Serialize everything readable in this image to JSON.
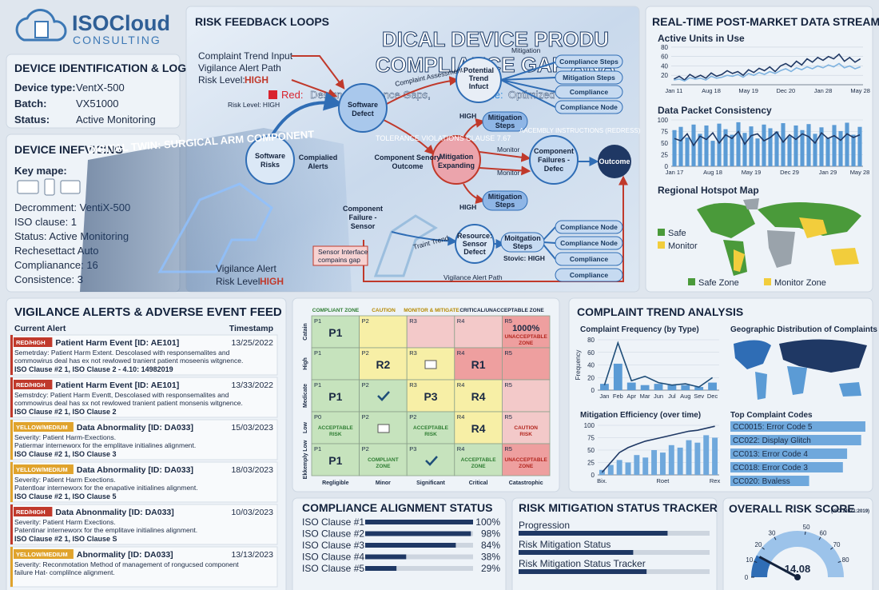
{
  "logo": {
    "name": "ISOCloud",
    "tagline": "CONSULTING"
  },
  "device_log": {
    "title": "DEVICE IDENTIFICATION & LOG",
    "fields": [
      {
        "label": "Device type:",
        "value": "VentX-500"
      },
      {
        "label": "Batch:",
        "value": "VX51000"
      },
      {
        "label": "Status:",
        "value": "Active Monitoring"
      }
    ]
  },
  "device_info": {
    "title": "DEVICE INEFVICING",
    "key_map": "Key mape:",
    "lines": [
      "Decromment: VentiX-500",
      "ISO clause: 1",
      "Status: Active Monitoring",
      "Rechesettact Auto",
      "Complianance: 16",
      "Consistence: 3"
    ]
  },
  "feedback": {
    "title": "RISK FEEDBACK LOOPS",
    "overlay_title": [
      "DICAL DEVICE PRODU",
      "COMPLIANCE GAP ANA"
    ],
    "legend": {
      "red": "Red:",
      "red_text": "Design Compliance Gaps,",
      "blue": "Blue:",
      "blue_text": "Optimized Path"
    },
    "inputs": [
      "Complaint Trend Input",
      "Vigilance Alert Path",
      "Risk Level:"
    ],
    "inputs_level": "HIGH",
    "nodes": [
      [
        "Software",
        "Risks"
      ],
      [
        "Compialied",
        "Alerts"
      ],
      [
        "Software",
        "Defect"
      ],
      [
        "Potential",
        "Trend",
        "Infuct"
      ],
      [
        "Mitigation",
        "Expanding"
      ],
      [
        "Component Senory",
        "Outcome"
      ],
      [
        "Component",
        "Failure -",
        "Sensor"
      ],
      [
        "Component",
        "Failures -",
        "Defec"
      ],
      [
        "Outcome"
      ],
      [
        "Mitigation",
        "Steps"
      ],
      [
        "Mitigation",
        "Steps"
      ],
      [
        "Resource:",
        "Sensor",
        "Defect"
      ],
      [
        "Moitgation",
        "Steps"
      ]
    ],
    "pills": [
      "Compliance Steps",
      "Mitigation Steps",
      "Compliance",
      "Compliance Node",
      "Compliance Node",
      "Compliance Node",
      "Compliance",
      "Compliance"
    ],
    "labels": [
      "Risk Level: HIGH",
      "Mitigation",
      "Complaint Assessment",
      "HIGH",
      "Monitor",
      "Monitor",
      "HIGH",
      "Vigilance Alert Path",
      "Stovic: HIGH",
      "Sensor Interface",
      "compains gap",
      "TOLERANCE VIOLATIONS CLAUSE 7.67",
      "AACEMBLY INSTRUCTIONS (REDRESS)",
      "DIGITAL TWIN: SURGICAL ARM COMPONENT",
      "Vigilance Alert",
      "Risk Level:",
      "HIGH",
      "Traint Trend"
    ]
  },
  "stream": {
    "title": "REAL-TIME POST-MARKET DATA STREAM",
    "map_title": "Regional Hotspot Map",
    "map_legend": [
      "Safe",
      "Monitor"
    ],
    "map_footer": [
      "Safe Zone",
      "Monitor Zone"
    ]
  },
  "alerts": {
    "title": "VIGILANCE ALERTS & ADVERSE EVENT FEED",
    "col_alert": "Current Alert",
    "col_time": "Timestamp",
    "items": [
      {
        "badge": "RED/HIGH",
        "color": "#c0392b",
        "title": "Patient Harm Event [ID: AE101]",
        "time": "13/25/2022",
        "lines": [
          "Semetrday: Patient Harm Extent. Descolased with responsemalites and",
          "commowirus deal has ex not rewlowed tranient patient moseenis witgnence."
        ],
        "clause": "ISO Clause #2 1, ISO Clause 2 - 4.10: 14982019"
      },
      {
        "badge": "RED/HIGH",
        "color": "#c0392b",
        "title": "Patient Harm Event [ID: AE101]",
        "time": "13/33/2022",
        "lines": [
          "Semstrdcy: Patient Harm Eventt, Descolased with responsemalites and",
          "commowirus deal has sx not rewlowed tranient patient monsenis witgnence."
        ],
        "clause": "ISO Clause #2 1, ISO Clause 2"
      },
      {
        "badge": "YELLOW/MEDIUM",
        "color": "#e0a32c",
        "title": "Data Abnormality [ID: DA033]",
        "time": "15/03/2023",
        "lines": [
          "Severity: Patient Harm-Exections.",
          "Patiermar interneworx for the emplitave initialines alignment."
        ],
        "clause": "ISO Clause #2 1, ISO Clause 3"
      },
      {
        "badge": "YELLOW/MEDIUM",
        "color": "#e0a32c",
        "title": "Data Abnormality [ID: DA033]",
        "time": "18/03/2023",
        "lines": [
          "Severity: Patient Harm Exections.",
          "Patentloar interneworx for the enapative initialines alignment."
        ],
        "clause": "ISO Clause #2 1, ISO Clause 5"
      },
      {
        "badge": "RED/HIGH",
        "color": "#c0392b",
        "title": "Data Abnonmality [ID: DA033]",
        "time": "10/03/2023",
        "lines": [
          "Severity: Patient Harm Exections.",
          "Patentinar interneworx for the emplitave initialines alignment."
        ],
        "clause": "ISO Clause #2 1, ISO Clause S"
      },
      {
        "badge": "YELLOW/MEDIUM",
        "color": "#e0a32c",
        "title": "Abnormality [ID: DA033]",
        "time": "13/13/2023",
        "lines": [
          "Severity: Reconmotation Method of management of rongucsed component",
          "failure Hat- complilnce alignment."
        ]
      }
    ]
  },
  "matrix": {
    "zones": [
      "COMPLIANT ZONE",
      "CAUTION",
      "MONITOR & MITIGATE",
      "CRITICAL/UNACCEPTABLE ZONE"
    ],
    "columns": [
      "Regligible",
      "Minor",
      "Significant",
      "Critical",
      "Catastrophic"
    ],
    "rows": [
      "Catain",
      "High",
      "Medicate",
      "Low",
      "Ekkemply Low"
    ],
    "cells": [
      [
        {
          "id": "P1",
          "main": "P1",
          "color": "#c6e3bd"
        },
        {
          "id": "P2",
          "color": "#f7efa6"
        },
        {
          "id": "R3",
          "color": "#f3c9c9"
        },
        {
          "id": "R4",
          "color": "#f3c9c9"
        },
        {
          "id": "R5",
          "main": "1000%",
          "note": [
            "UNACCEPTABLE",
            "ZONE"
          ],
          "note_color": "#b3261e",
          "color": "#ee9f9f"
        }
      ],
      [
        {
          "id": "P1",
          "color": "#c6e3bd"
        },
        {
          "id": "P2",
          "main": "R2",
          "color": "#f7efa6"
        },
        {
          "id": "R3",
          "color": "#f7efa6"
        },
        {
          "id": "R4",
          "main": "R1",
          "color": "#ee9f9f"
        },
        {
          "id": "R5",
          "color": "#ee9f9f"
        }
      ],
      [
        {
          "id": "P1",
          "main": "P1",
          "color": "#c6e3bd"
        },
        {
          "id": "P2",
          "color": "#c6e3bd"
        },
        {
          "id": "R3",
          "main": "P3",
          "color": "#f7efa6"
        },
        {
          "id": "R4",
          "main": "R4",
          "color": "#f7efa6"
        },
        {
          "id": "R5",
          "color": "#f3c9c9"
        }
      ],
      [
        {
          "id": "P0",
          "note": [
            "ACCEPTABLE",
            "RISK"
          ],
          "note_color": "#2e7d32",
          "color": "#c6e3bd"
        },
        {
          "id": "P2",
          "color": "#c6e3bd"
        },
        {
          "id": "P2",
          "note": [
            "ACCEPTABLE",
            "RISK"
          ],
          "note_color": "#2e7d32",
          "color": "#c6e3bd"
        },
        {
          "id": "R4",
          "main": "R4",
          "color": "#f7efa6"
        },
        {
          "id": "R5",
          "note": [
            "CAUTION",
            "RISK"
          ],
          "note_color": "#b3261e",
          "color": "#f3c9c9"
        }
      ],
      [
        {
          "id": "P1",
          "main": "P1",
          "color": "#c6e3bd"
        },
        {
          "id": "P2",
          "note": [
            "COMPLIANT",
            "ZONE"
          ],
          "note_color": "#2e7d32",
          "color": "#c6e3bd"
        },
        {
          "id": "P3",
          "color": "#c6e3bd"
        },
        {
          "id": "R4",
          "note": [
            "ACCEPTABLE",
            "ZONE"
          ],
          "note_color": "#2e7d32",
          "color": "#c6e3bd"
        },
        {
          "id": "R5",
          "note": [
            "UNACCEPTABLE",
            "ZONE"
          ],
          "note_color": "#b3261e",
          "color": "#ee9f9f"
        }
      ]
    ]
  },
  "complaints": {
    "title": "COMPLAINT TREND ANALYSIS",
    "geo_title": "Geographic Distribution of Complaints"
  },
  "overall": {
    "title": "OVERALL RISK SCORE",
    "subtitle": "(ISO 14971:2019)"
  },
  "chart_data": [
    {
      "type": "line",
      "title": "Active Units in Use",
      "categories": [
        "Jan 11",
        null,
        null,
        null,
        null,
        null,
        null,
        "Aug 18",
        null,
        null,
        null,
        null,
        null,
        null,
        "May 19",
        null,
        null,
        null,
        null,
        null,
        null,
        "Dec 20",
        null,
        null,
        null,
        null,
        null,
        null,
        "Jan 28",
        null,
        null,
        null,
        null,
        null,
        null,
        "May 28"
      ],
      "ylim": [
        0,
        85
      ],
      "yticks": [
        20,
        40,
        60,
        80
      ],
      "grid": true,
      "series": [
        {
          "name": "Active",
          "type": "line",
          "color": "#1f3864",
          "values": [
            12,
            18,
            10,
            22,
            15,
            20,
            14,
            25,
            18,
            22,
            30,
            24,
            28,
            20,
            32,
            26,
            35,
            30,
            38,
            28,
            40,
            45,
            38,
            50,
            42,
            55,
            48,
            58,
            52,
            60,
            55,
            65,
            50,
            58,
            48,
            55
          ]
        },
        {
          "name": "Baseline",
          "type": "line",
          "color": "#7fb3e0",
          "values": [
            10,
            12,
            8,
            15,
            12,
            14,
            10,
            18,
            14,
            16,
            20,
            18,
            22,
            16,
            24,
            20,
            26,
            22,
            28,
            24,
            30,
            34,
            28,
            36,
            32,
            38,
            34,
            40,
            36,
            42,
            38,
            45,
            36,
            40,
            34,
            38
          ]
        }
      ]
    },
    {
      "type": "combo",
      "title": "Data Packet Consistency",
      "categories": [
        "Jan 17",
        null,
        null,
        null,
        null,
        null,
        "Aug 18",
        null,
        null,
        null,
        null,
        null,
        "May 19",
        null,
        null,
        null,
        null,
        null,
        "Dec 29",
        null,
        null,
        null,
        null,
        null,
        "Jan 29",
        null,
        null,
        null,
        null,
        "May 28"
      ],
      "ylim": [
        0,
        100
      ],
      "yticks": [
        0,
        25,
        50,
        75,
        100
      ],
      "grid": true,
      "series": [
        {
          "name": "Packets",
          "type": "bar",
          "color": "#5b9bd5",
          "values": [
            78,
            85,
            62,
            90,
            70,
            88,
            55,
            92,
            80,
            68,
            95,
            72,
            86,
            60,
            90,
            82,
            75,
            93,
            65,
            88,
            78,
            91,
            70,
            84,
            62,
            89,
            76,
            94,
            68,
            85
          ]
        },
        {
          "name": "Consistency",
          "type": "line",
          "color": "#1f3864",
          "values": [
            60,
            55,
            70,
            45,
            65,
            58,
            72,
            50,
            68,
            60,
            75,
            48,
            66,
            70,
            55,
            62,
            74,
            52,
            68,
            58,
            70,
            64,
            50,
            72,
            60,
            66,
            56,
            70,
            62,
            68
          ]
        }
      ]
    },
    {
      "type": "combo",
      "title": "Complaint Frequency (by Type)",
      "y_label": "Frequency",
      "categories": [
        "Jan",
        "Feb",
        "Apr",
        "Mar",
        "Jun",
        "Jul",
        "Aug",
        "Sev",
        "Dec"
      ],
      "ylim": [
        0,
        80
      ],
      "yticks": [
        0,
        20,
        40,
        60,
        80
      ],
      "grid": true,
      "series": [
        {
          "name": "Count",
          "type": "bar",
          "color": "#5b9bd5",
          "values": [
            10,
            42,
            12,
            8,
            10,
            8,
            8,
            5,
            12
          ]
        },
        {
          "name": "Trend",
          "type": "line",
          "color": "#1f4e79",
          "values": [
            8,
            75,
            15,
            22,
            12,
            8,
            10,
            5,
            20
          ]
        }
      ]
    },
    {
      "type": "combo",
      "title": "Mitigation Efficiency (over time)",
      "categories": [
        "Bix.",
        null,
        null,
        null,
        null,
        null,
        null,
        "Roet",
        null,
        null,
        null,
        null,
        null,
        "Rex"
      ],
      "ylim": [
        0,
        100
      ],
      "yticks": [
        0,
        25,
        50,
        75,
        100
      ],
      "grid": true,
      "series": [
        {
          "name": "Efficiency",
          "type": "bar",
          "color": "#6fa8dc",
          "values": [
            10,
            20,
            30,
            25,
            40,
            35,
            50,
            45,
            60,
            55,
            70,
            65,
            80,
            75
          ]
        },
        {
          "name": "Target",
          "type": "line",
          "color": "#1f3864",
          "values": [
            5,
            25,
            45,
            55,
            62,
            68,
            72,
            76,
            80,
            84,
            88,
            90,
            94,
            98
          ]
        }
      ]
    },
    {
      "type": "hbar",
      "title": "Top Complaint Codes",
      "categories": [
        "CC0015: Error Code 5",
        "CC022: Display Glitch",
        "CC013: Error Code 4",
        "CC018: Error Code 3",
        "CC020: Bvaless"
      ],
      "values": [
        96,
        93,
        83,
        80,
        56
      ],
      "xlim": [
        0,
        100
      ],
      "color": "#6fa8dc"
    },
    {
      "type": "hbar",
      "title": "COMPLIANCE ALIGNMENT STATUS",
      "categories": [
        "ISO Clause #1",
        "ISO Clause #2",
        "ISO Clause #3",
        "ISO Clause #4",
        "ISO Clause #5"
      ],
      "values": [
        100,
        98,
        84,
        38,
        29
      ],
      "value_labels": [
        "100%",
        "98%",
        "84%",
        "38%",
        "29%"
      ],
      "xlim": [
        0,
        100
      ],
      "color": "#1f3864"
    },
    {
      "type": "hbar",
      "title": "RISK MITIGATION STATUS TRACKER",
      "categories": [
        "Progression",
        "Risk Mitigation Status",
        "Risk Mitigation Status Tracker"
      ],
      "values": [
        78,
        60,
        67
      ],
      "xlim": [
        0,
        100
      ],
      "color": "#1f3864"
    },
    {
      "type": "gauge",
      "value": 14.08,
      "ylim": [
        0,
        90
      ],
      "yticks": [
        0,
        10,
        20,
        30,
        50,
        60,
        70,
        80
      ],
      "color": "#2f6db5"
    }
  ]
}
